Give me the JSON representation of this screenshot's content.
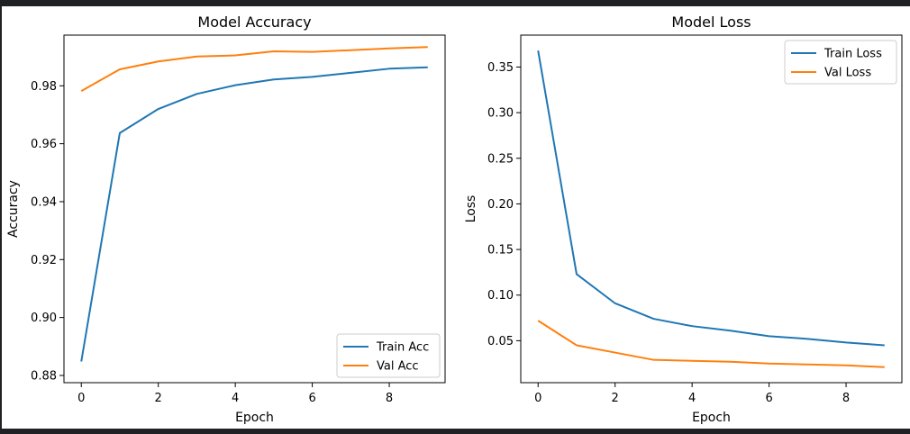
{
  "chart_data": [
    {
      "type": "line",
      "title": "Model Accuracy",
      "xlabel": "Epoch",
      "ylabel": "Accuracy",
      "x": [
        0,
        1,
        2,
        3,
        4,
        5,
        6,
        7,
        8,
        9
      ],
      "xlim": [
        -0.45,
        9.45
      ],
      "ylim": [
        0.8775,
        0.9975
      ],
      "xticks": [
        0,
        2,
        4,
        6,
        8
      ],
      "yticks": [
        0.88,
        0.9,
        0.92,
        0.94,
        0.96,
        0.98
      ],
      "ytick_labels": [
        "0.88",
        "0.90",
        "0.92",
        "0.94",
        "0.96",
        "0.98"
      ],
      "grid": false,
      "legend_position": "lower right",
      "series": [
        {
          "name": "Train Acc",
          "color": "#1f77b4",
          "values": [
            0.8848,
            0.9637,
            0.972,
            0.9772,
            0.9802,
            0.9822,
            0.9831,
            0.9845,
            0.9859,
            0.9864
          ]
        },
        {
          "name": "Val Acc",
          "color": "#ff7f0e",
          "values": [
            0.9782,
            0.9857,
            0.9884,
            0.9901,
            0.9905,
            0.9919,
            0.9917,
            0.9923,
            0.9929,
            0.9934
          ]
        }
      ]
    },
    {
      "type": "line",
      "title": "Model Loss",
      "xlabel": "Epoch",
      "ylabel": "Loss",
      "x": [
        0,
        1,
        2,
        3,
        4,
        5,
        6,
        7,
        8,
        9
      ],
      "xlim": [
        -0.45,
        9.45
      ],
      "ylim": [
        0.004,
        0.385
      ],
      "xticks": [
        0,
        2,
        4,
        6,
        8
      ],
      "yticks": [
        0.05,
        0.1,
        0.15,
        0.2,
        0.25,
        0.3,
        0.35
      ],
      "ytick_labels": [
        "0.05",
        "0.10",
        "0.15",
        "0.20",
        "0.25",
        "0.30",
        "0.35"
      ],
      "grid": false,
      "legend_position": "upper right",
      "series": [
        {
          "name": "Train Loss",
          "color": "#1f77b4",
          "values": [
            0.368,
            0.123,
            0.091,
            0.074,
            0.066,
            0.061,
            0.055,
            0.052,
            0.048,
            0.045
          ]
        },
        {
          "name": "Val Loss",
          "color": "#ff7f0e",
          "values": [
            0.072,
            0.045,
            0.037,
            0.029,
            0.028,
            0.027,
            0.025,
            0.024,
            0.023,
            0.021
          ]
        }
      ]
    }
  ]
}
